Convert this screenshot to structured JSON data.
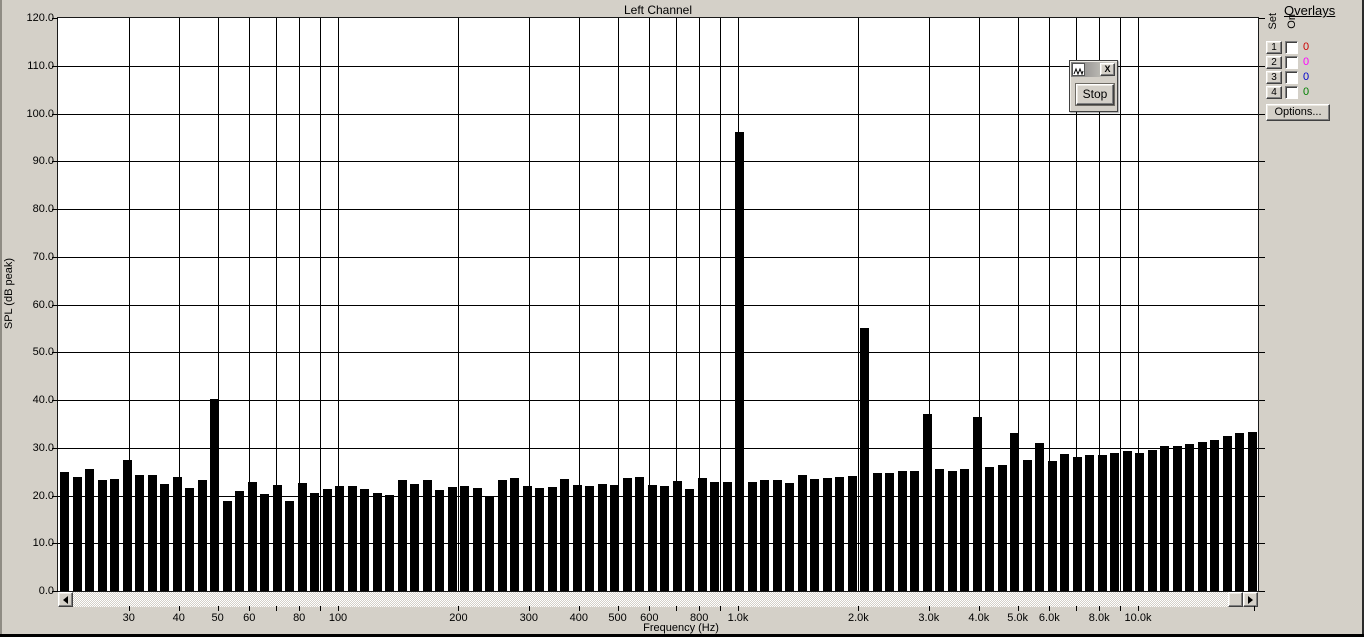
{
  "window": {
    "title": "Left Channel"
  },
  "chart_data": {
    "type": "bar",
    "title": "Left Channel",
    "xlabel": "Frequency (Hz)",
    "ylabel": "SPL (dB peak)",
    "x_scale": "log",
    "xlim_hz": [
      20,
      20000
    ],
    "ylim_db": [
      0,
      120
    ],
    "grid": true,
    "bar_color": "#000000",
    "y_tick_labels": [
      "120.0",
      "110.0",
      "100.0",
      "90.0",
      "80.0",
      "70.0",
      "60.0",
      "50.0",
      "40.0",
      "30.0",
      "20.0",
      "10.0",
      "0.0"
    ],
    "x_ticks": [
      {
        "hz": 30,
        "label": "30"
      },
      {
        "hz": 40,
        "label": "40"
      },
      {
        "hz": 50,
        "label": "50"
      },
      {
        "hz": 60,
        "label": "60"
      },
      {
        "hz": 70,
        "label": ""
      },
      {
        "hz": 80,
        "label": "80"
      },
      {
        "hz": 90,
        "label": ""
      },
      {
        "hz": 100,
        "label": "100"
      },
      {
        "hz": 200,
        "label": "200"
      },
      {
        "hz": 300,
        "label": "300"
      },
      {
        "hz": 400,
        "label": "400"
      },
      {
        "hz": 500,
        "label": "500"
      },
      {
        "hz": 600,
        "label": "600"
      },
      {
        "hz": 700,
        "label": ""
      },
      {
        "hz": 800,
        "label": "800"
      },
      {
        "hz": 900,
        "label": ""
      },
      {
        "hz": 1000,
        "label": "1.0k"
      },
      {
        "hz": 2000,
        "label": "2.0k"
      },
      {
        "hz": 3000,
        "label": "3.0k"
      },
      {
        "hz": 4000,
        "label": "4.0k"
      },
      {
        "hz": 5000,
        "label": "5.0k"
      },
      {
        "hz": 6000,
        "label": "6.0k"
      },
      {
        "hz": 7000,
        "label": ""
      },
      {
        "hz": 8000,
        "label": "8.0k"
      },
      {
        "hz": 9000,
        "label": ""
      },
      {
        "hz": 10000,
        "label": "10.0k"
      },
      {
        "hz": 20000,
        "label": ""
      }
    ],
    "frequencies_hz": [
      21,
      22,
      24,
      26,
      28,
      30,
      32,
      34,
      37,
      40,
      43,
      46,
      49,
      53,
      57,
      61,
      66,
      71,
      76,
      82,
      88,
      94,
      101,
      109,
      117,
      126,
      135,
      145,
      156,
      168,
      180,
      194,
      208,
      224,
      240,
      258,
      277,
      298,
      320,
      344,
      370,
      397,
      427,
      459,
      493,
      530,
      569,
      612,
      658,
      707,
      760,
      816,
      877,
      943,
      1013,
      1089,
      1170,
      1258,
      1351,
      1452,
      1561,
      1677,
      1803,
      1937,
      2082,
      2238,
      2405,
      2585,
      2778,
      2985,
      3208,
      3448,
      3705,
      3982,
      4280,
      4599,
      4943,
      5312,
      5709,
      6135,
      6593,
      7086,
      7615,
      8184,
      8795,
      9452,
      10158,
      10917,
      11732,
      12609,
      13550,
      14562,
      15650,
      16819,
      18075,
      19425
    ],
    "values_db": [
      24.9,
      23.8,
      25.5,
      23.3,
      23.4,
      27.4,
      24.2,
      24.2,
      22.4,
      23.9,
      21.6,
      23.2,
      40.3,
      18.8,
      20.9,
      22.8,
      20.3,
      22.3,
      18.8,
      22.6,
      20.5,
      21.3,
      22.1,
      22.0,
      21.4,
      20.6,
      20.2,
      23.3,
      22.4,
      23.2,
      21.2,
      21.7,
      21.9,
      21.5,
      19.7,
      23.2,
      23.7,
      21.9,
      21.6,
      21.7,
      23.5,
      22.3,
      21.9,
      22.4,
      22.2,
      23.7,
      23.9,
      22.3,
      22.0,
      23.1,
      21.4,
      23.7,
      22.8,
      22.9,
      96.2,
      22.8,
      23.3,
      23.3,
      22.6,
      24.2,
      23.4,
      23.6,
      23.9,
      24.0,
      55.1,
      24.7,
      24.7,
      25.1,
      25.1,
      37.1,
      25.6,
      25.2,
      25.6,
      36.4,
      26.0,
      26.3,
      33.0,
      27.4,
      31.0,
      27.3,
      28.7,
      28.1,
      28.4,
      28.4,
      28.9,
      29.4,
      29.0,
      29.6,
      30.3,
      30.3,
      30.8,
      31.2,
      31.7,
      32.4,
      33.2,
      33.4
    ],
    "peaks": [
      {
        "hz": 50,
        "db": 40.3
      },
      {
        "hz": 1000,
        "db": 96.2
      },
      {
        "hz": 2000,
        "db": 55.1
      },
      {
        "hz": 3000,
        "db": 37.1
      },
      {
        "hz": 4000,
        "db": 36.4
      },
      {
        "hz": 5000,
        "db": 33.0
      },
      {
        "hz": 6000,
        "db": 31.0
      }
    ]
  },
  "overlays": {
    "title": "Overlays",
    "set_label": "Set",
    "on_label": "On",
    "rows": [
      {
        "num": "1",
        "value": "0",
        "color": "#cc0000",
        "checked": false
      },
      {
        "num": "2",
        "value": "0",
        "color": "#ff00ff",
        "checked": false
      },
      {
        "num": "3",
        "value": "0",
        "color": "#0000cc",
        "checked": false
      },
      {
        "num": "4",
        "value": "0",
        "color": "#008000",
        "checked": false
      }
    ],
    "options_label": "Options..."
  },
  "mini_window": {
    "icon": "waveform-icon",
    "close_glyph": "X",
    "stop_label": "Stop"
  },
  "scrollbar": {
    "left_icon": "arrow-left-icon",
    "right_icon": "arrow-right-icon"
  },
  "colors": {
    "background": "#d4d0c8",
    "plot_bg": "#ffffff",
    "grid": "#000000",
    "bar": "#000000"
  }
}
